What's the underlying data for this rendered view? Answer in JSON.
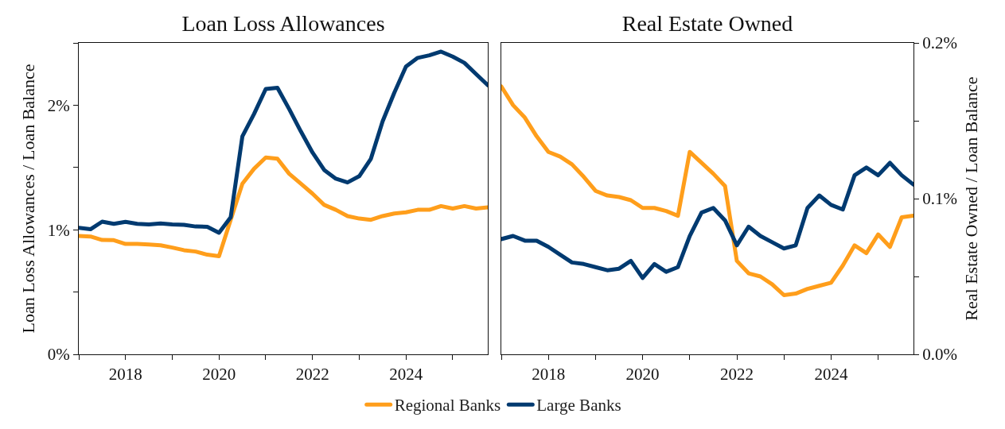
{
  "chart_data": [
    {
      "type": "line",
      "title": "Loan Loss Allowances",
      "ylabel": "Loan Loss Allowances / Loan Balance",
      "legend": "bottom",
      "grid": false,
      "marker": "none",
      "line_style": "solid",
      "x": [
        2017,
        2017.25,
        2017.5,
        2017.75,
        2018,
        2018.25,
        2018.5,
        2018.75,
        2019,
        2019.25,
        2019.5,
        2019.75,
        2020,
        2020.25,
        2020.5,
        2020.75,
        2021,
        2021.25,
        2021.5,
        2021.75,
        2022,
        2022.25,
        2022.5,
        2022.75,
        2023,
        2023.25,
        2023.5,
        2023.75,
        2024,
        2024.25,
        2024.5,
        2024.75,
        2025,
        2025.25,
        2025.5,
        2025.75
      ],
      "xlim": [
        2017,
        2025.75
      ],
      "xticks": [
        {
          "value": 2017,
          "label": null
        },
        {
          "value": 2018,
          "label": "2018"
        },
        {
          "value": 2019,
          "label": null
        },
        {
          "value": 2020,
          "label": "2020"
        },
        {
          "value": 2021,
          "label": null
        },
        {
          "value": 2022,
          "label": "2022"
        },
        {
          "value": 2023,
          "label": null
        },
        {
          "value": 2024,
          "label": "2024"
        },
        {
          "value": 2025,
          "label": null
        }
      ],
      "ylim": [
        0,
        2.5
      ],
      "yticks": [
        {
          "value": 0,
          "label": "0%"
        },
        {
          "value": 0.5,
          "label": null
        },
        {
          "value": 1,
          "label": "1%"
        },
        {
          "value": 1.5,
          "label": null
        },
        {
          "value": 2,
          "label": "2%"
        },
        {
          "value": 2.5,
          "label": null
        }
      ],
      "series": [
        {
          "name": "Regional Banks",
          "color": "#ff9e1b",
          "values": [
            0.95,
            0.946,
            0.918,
            0.916,
            0.886,
            0.886,
            0.881,
            0.875,
            0.857,
            0.836,
            0.825,
            0.8,
            0.788,
            1.08,
            1.37,
            1.49,
            1.58,
            1.57,
            1.45,
            1.37,
            1.29,
            1.2,
            1.16,
            1.11,
            1.09,
            1.08,
            1.11,
            1.13,
            1.14,
            1.16,
            1.16,
            1.19,
            1.17,
            1.19,
            1.17,
            1.18
          ]
        },
        {
          "name": "Large Banks",
          "color": "#003a70",
          "values": [
            1.015,
            1.004,
            1.065,
            1.048,
            1.063,
            1.048,
            1.043,
            1.05,
            1.043,
            1.039,
            1.026,
            1.024,
            0.976,
            1.1,
            1.75,
            1.93,
            2.13,
            2.14,
            1.97,
            1.79,
            1.62,
            1.48,
            1.41,
            1.38,
            1.43,
            1.57,
            1.87,
            2.1,
            2.31,
            2.38,
            2.4,
            2.43,
            2.39,
            2.34,
            2.25,
            2.16
          ]
        }
      ]
    },
    {
      "type": "line",
      "title": "Real Estate Owned",
      "ylabel": "Real Estate Owned / Loan Balance",
      "legend": false,
      "grid": false,
      "marker": "none",
      "line_style": "solid",
      "x": [
        2017,
        2017.25,
        2017.5,
        2017.75,
        2018,
        2018.25,
        2018.5,
        2018.75,
        2019,
        2019.25,
        2019.5,
        2019.75,
        2020,
        2020.25,
        2020.5,
        2020.75,
        2021,
        2021.25,
        2021.5,
        2021.75,
        2022,
        2022.25,
        2022.5,
        2022.75,
        2023,
        2023.25,
        2023.5,
        2023.75,
        2024,
        2024.25,
        2024.5,
        2024.75,
        2025,
        2025.25,
        2025.5,
        2025.75
      ],
      "xlim": [
        2017,
        2025.75
      ],
      "xticks": [
        {
          "value": 2017,
          "label": null
        },
        {
          "value": 2018,
          "label": "2018"
        },
        {
          "value": 2019,
          "label": null
        },
        {
          "value": 2020,
          "label": "2020"
        },
        {
          "value": 2021,
          "label": null
        },
        {
          "value": 2022,
          "label": "2022"
        },
        {
          "value": 2023,
          "label": null
        },
        {
          "value": 2024,
          "label": "2024"
        },
        {
          "value": 2025,
          "label": null
        }
      ],
      "ylim": [
        0,
        0.2
      ],
      "yticks": [
        {
          "value": 0,
          "label": "0.0%"
        },
        {
          "value": 0.05,
          "label": null
        },
        {
          "value": 0.1,
          "label": "0.1%"
        },
        {
          "value": 0.15,
          "label": null
        },
        {
          "value": 0.2,
          "label": "0.2%"
        }
      ],
      "series": [
        {
          "color": "#ff9e1b",
          "values": [
            0.172,
            0.16,
            0.152,
            0.14,
            0.13,
            0.127,
            0.122,
            0.114,
            0.105,
            0.102,
            0.101,
            0.099,
            0.094,
            0.094,
            0.092,
            0.089,
            0.13,
            0.123,
            0.116,
            0.108,
            0.06,
            0.052,
            0.05,
            0.045,
            0.038,
            0.039,
            0.042,
            0.044,
            0.046,
            0.057,
            0.07,
            0.065,
            0.077,
            0.069,
            0.088,
            0.089
          ]
        },
        {
          "color": "#003a70",
          "values": [
            0.074,
            0.076,
            0.073,
            0.073,
            0.069,
            0.064,
            0.059,
            0.058,
            0.056,
            0.054,
            0.055,
            0.06,
            0.049,
            0.058,
            0.053,
            0.056,
            0.076,
            0.091,
            0.094,
            0.086,
            0.07,
            0.082,
            0.076,
            0.072,
            0.068,
            0.07,
            0.094,
            0.102,
            0.096,
            0.093,
            0.115,
            0.12,
            0.115,
            0.123,
            0.115,
            0.109
          ]
        }
      ]
    }
  ]
}
